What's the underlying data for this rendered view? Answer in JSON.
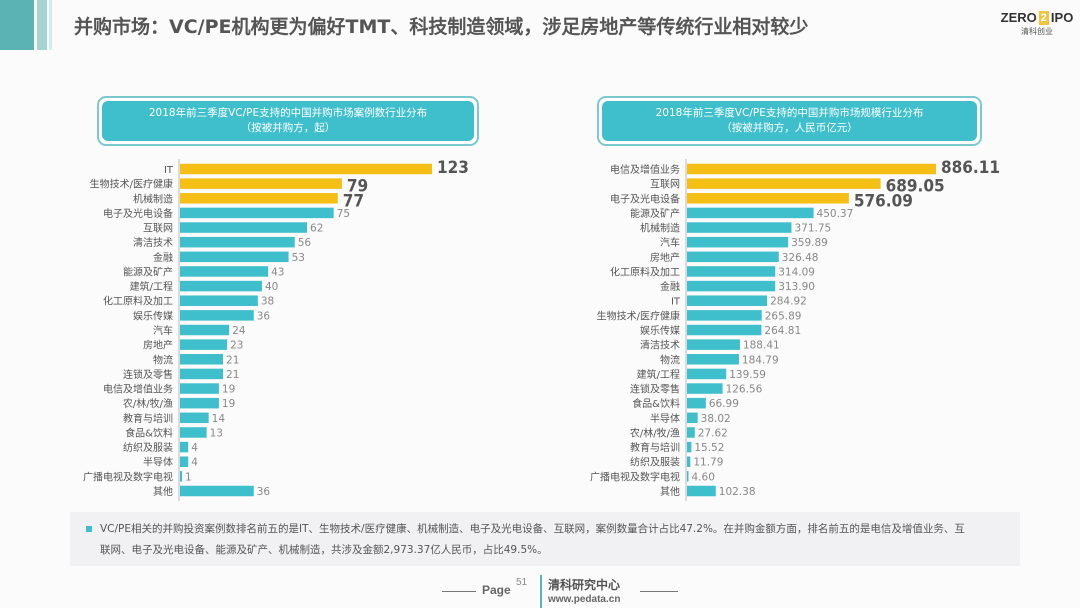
{
  "header": {
    "title": "并购市场：VC/PE机构更为偏好TMT、科技制造领域，涉足房地产等传统行业相对较少",
    "logo_text_left": "ZERO",
    "logo_text_mid": "2",
    "logo_text_right": "IPO",
    "logo_subtext": "清科创业"
  },
  "colors": {
    "highlight": "#f5bf16",
    "normal": "#3fbfcc",
    "accent": "#5bb3b4"
  },
  "chart_data": [
    {
      "type": "bar",
      "orientation": "horizontal",
      "title_line1": "2018年前三季度VC/PE支持的中国并购市场案例数行业分布",
      "title_line2": "（按被并购方，起）",
      "categories": [
        "IT",
        "生物技术/医疗健康",
        "机械制造",
        "电子及光电设备",
        "互联网",
        "清洁技术",
        "金融",
        "能源及矿产",
        "建筑/工程",
        "化工原料及加工",
        "娱乐传媒",
        "汽车",
        "房地产",
        "物流",
        "连锁及零售",
        "电信及增值业务",
        "农/林/牧/渔",
        "教育与培训",
        "食品&饮料",
        "纺织及服装",
        "半导体",
        "广播电视及数字电视",
        "其他"
      ],
      "values": [
        123,
        79,
        77,
        75,
        62,
        56,
        53,
        43,
        40,
        38,
        36,
        24,
        23,
        21,
        21,
        19,
        19,
        14,
        13,
        4,
        4,
        1,
        36
      ],
      "value_labels": [
        "123",
        "79",
        "77",
        "75",
        "62",
        "56",
        "53",
        "43",
        "40",
        "38",
        "36",
        "24",
        "23",
        "21",
        "21",
        "19",
        "19",
        "14",
        "13",
        "4",
        "4",
        "1",
        "36"
      ],
      "highlight_top": 3,
      "xlim": [
        0,
        123
      ]
    },
    {
      "type": "bar",
      "orientation": "horizontal",
      "title_line1": "2018年前三季度VC/PE支持的中国并购市场规模行业分布",
      "title_line2": "（按被并购方，人民币亿元）",
      "categories": [
        "电信及增值业务",
        "互联网",
        "电子及光电设备",
        "能源及矿产",
        "机械制造",
        "汽车",
        "房地产",
        "化工原料及加工",
        "金融",
        "IT",
        "生物技术/医疗健康",
        "娱乐传媒",
        "清洁技术",
        "物流",
        "建筑/工程",
        "连锁及零售",
        "食品&饮料",
        "半导体",
        "农/林/牧/渔",
        "教育与培训",
        "纺织及服装",
        "广播电视及数字电视",
        "其他"
      ],
      "values": [
        886.11,
        689.05,
        576.09,
        450.37,
        371.75,
        359.89,
        326.48,
        314.09,
        313.9,
        284.92,
        265.89,
        264.81,
        188.41,
        184.79,
        139.59,
        126.56,
        66.99,
        38.02,
        27.62,
        15.52,
        11.79,
        4.6,
        102.38
      ],
      "value_labels": [
        "886.11",
        "689.05",
        "576.09",
        "450.37",
        "371.75",
        "359.89",
        "326.48",
        "314.09",
        "313.90",
        "284.92",
        "265.89",
        "264.81",
        "188.41",
        "184.79",
        "139.59",
        "126.56",
        "66.99",
        "38.02",
        "27.62",
        "15.52",
        "11.79",
        "4.60",
        "102.38"
      ],
      "highlight_top": 3,
      "xlim": [
        0,
        886.11
      ]
    }
  ],
  "summary": {
    "text": "VC/PE相关的并购投资案例数排名前五的是IT、生物技术/医疗健康、机械制造、电子及光电设备、互联网，案例数量合计占比47.2%。在并购金额方面，排名前五的是电信及增值业务、互联网、电子及光电设备、能源及矿产、机械制造，共涉及金额2,973.37亿人民币，占比49.5%。"
  },
  "footer": {
    "page_label": "Page",
    "page_number": "51",
    "org": "清科研究中心",
    "url": "www.pedata.cn"
  }
}
